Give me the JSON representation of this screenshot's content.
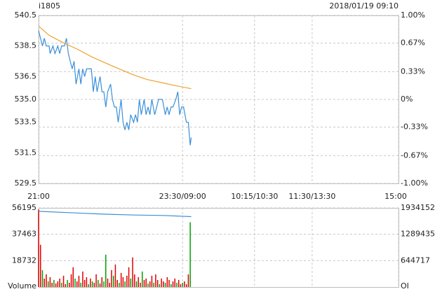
{
  "chart_data": [
    {
      "type": "line",
      "title": "i1805",
      "subtitle": "2018/01/19 09:10",
      "xlim": [
        0,
        375
      ],
      "xticks": [
        {
          "value": 0,
          "label": "21:00"
        },
        {
          "value": 150,
          "label": "23:30/09:00"
        },
        {
          "value": 225,
          "label": "10:15/10:30"
        },
        {
          "value": 285,
          "label": "11:30/13:30"
        },
        {
          "value": 375,
          "label": "15:00"
        }
      ],
      "ylim": [
        529.5,
        540.5
      ],
      "yticks": [
        540.5,
        538.5,
        536.5,
        {
          "value": 535,
          "label": "535.0"
        },
        533.5,
        531.5,
        529.5
      ],
      "y2lim": [
        -1,
        1
      ],
      "y2ticks": [
        {
          "value": 1,
          "label": "1.00%"
        },
        {
          "value": 0.67,
          "label": "0.67%"
        },
        {
          "value": 0.33,
          "label": "0.33%"
        },
        {
          "value": 0,
          "label": "0%"
        },
        {
          "value": -0.33,
          "label": "-0.33%"
        },
        {
          "value": -0.67,
          "label": "-0.67%"
        },
        {
          "value": -1,
          "label": "-1.00%"
        }
      ],
      "grid": true,
      "series": [
        {
          "color": "#3a8fd9",
          "x": [
            0,
            4,
            6,
            8,
            11,
            12,
            15,
            17,
            20,
            22,
            24,
            27,
            29,
            31,
            33,
            35,
            37,
            39,
            42,
            44,
            46,
            48,
            50,
            53,
            55,
            57,
            59,
            61,
            64,
            66,
            68,
            70,
            72,
            75,
            77,
            79,
            81,
            83,
            86,
            88,
            90,
            92,
            94,
            96,
            99,
            101,
            103,
            105,
            107,
            110,
            112,
            114,
            116,
            118,
            121,
            123,
            125,
            127,
            129,
            132,
            134,
            136,
            138,
            140,
            143,
            145,
            147,
            149,
            151,
            154,
            156,
            158,
            159
          ],
          "values": [
            539.5,
            538.5,
            539.0,
            538.5,
            538.5,
            538.0,
            538.5,
            538.0,
            538.5,
            538.0,
            538.5,
            538.5,
            539.0,
            538.0,
            537.5,
            537.0,
            537.5,
            536.0,
            537.0,
            536.0,
            537.0,
            536.5,
            537.0,
            537.0,
            537.0,
            535.5,
            536.5,
            535.5,
            536.5,
            535.5,
            535.5,
            534.5,
            535.5,
            536.0,
            535.0,
            534.5,
            534.5,
            533.5,
            535.0,
            533.5,
            533.0,
            533.5,
            533.0,
            534.0,
            533.5,
            534.0,
            533.5,
            535.0,
            534.0,
            535.0,
            534.0,
            534.5,
            534.0,
            535.0,
            534.0,
            534.5,
            535.0,
            535.0,
            535.0,
            534.0,
            534.5,
            534.0,
            534.5,
            534.5,
            535.0,
            535.5,
            534.0,
            534.5,
            534.5,
            533.5,
            533.5,
            532.0,
            532.5
          ]
        },
        {
          "color": "#f0a030",
          "x": [
            0,
            11,
            26,
            40,
            55,
            69,
            84,
            99,
            113,
            128,
            143,
            159
          ],
          "values": [
            539.8,
            539.2,
            538.7,
            538.3,
            537.8,
            537.4,
            537.0,
            536.6,
            536.3,
            536.1,
            535.9,
            535.7
          ]
        }
      ]
    },
    {
      "type": "bar",
      "ylabel": "Volume",
      "y2label": "OI",
      "xlim": [
        0,
        375
      ],
      "ylim": [
        0,
        56195
      ],
      "yticks": [
        18732,
        37463,
        56195
      ],
      "y2lim": [
        0,
        1934152
      ],
      "y2ticks": [
        644717,
        1289435,
        1934152
      ],
      "grid": true,
      "series": [
        {
          "x": [
            0,
            2,
            4,
            6,
            8,
            10,
            12,
            14,
            16,
            18,
            20,
            22,
            24,
            26,
            28,
            30,
            32,
            34,
            36,
            38,
            40,
            42,
            44,
            46,
            48,
            50,
            52,
            54,
            56,
            58,
            60,
            62,
            64,
            66,
            68,
            70,
            72,
            74,
            76,
            78,
            80,
            82,
            84,
            86,
            88,
            90,
            92,
            94,
            96,
            98,
            100,
            102,
            104,
            106,
            108,
            110,
            112,
            114,
            116,
            118,
            120,
            122,
            124,
            126,
            128,
            130,
            132,
            134,
            136,
            138,
            140,
            142,
            144,
            146,
            148,
            150,
            152,
            154,
            156,
            158
          ],
          "values": [
            55000,
            30000,
            12000,
            6000,
            9000,
            4000,
            7000,
            3000,
            5000,
            2500,
            4000,
            6000,
            3000,
            8000,
            2000,
            5000,
            3000,
            9000,
            14000,
            6000,
            4000,
            8000,
            3000,
            11000,
            5000,
            7000,
            2000,
            6000,
            4000,
            3000,
            9000,
            5000,
            2500,
            7000,
            4000,
            23000,
            6000,
            3000,
            12000,
            8000,
            16000,
            5000,
            3000,
            10000,
            7000,
            4000,
            8000,
            14000,
            6000,
            21000,
            9000,
            4000,
            7000,
            3000,
            11000,
            5000,
            6000,
            2500,
            4000,
            8000,
            3000,
            9000,
            5000,
            2000,
            6000,
            4000,
            3000,
            7000,
            5000,
            2000,
            4000,
            6000,
            3000,
            5000,
            2000,
            3000,
            4000,
            2000,
            9000,
            46000
          ],
          "colors": [
            "#e00000",
            "#e00000",
            "#00a000",
            "#e00000",
            "#e00000",
            "#00a000",
            "#e00000",
            "#e00000",
            "#00a000",
            "#e00000",
            "#e00000",
            "#e00000",
            "#00a000",
            "#e00000",
            "#e00000",
            "#00a000",
            "#e00000",
            "#e00000",
            "#e00000",
            "#00a000",
            "#e00000",
            "#e00000",
            "#00a000",
            "#e00000",
            "#e00000",
            "#e00000",
            "#00a000",
            "#e00000",
            "#00a000",
            "#e00000",
            "#e00000",
            "#00a000",
            "#e00000",
            "#e00000",
            "#00a000",
            "#00a000",
            "#e00000",
            "#e00000",
            "#e00000",
            "#00a000",
            "#e00000",
            "#e00000",
            "#00a000",
            "#e00000",
            "#e00000",
            "#00a000",
            "#e00000",
            "#e00000",
            "#00a000",
            "#e00000",
            "#e00000",
            "#00a000",
            "#e00000",
            "#e00000",
            "#00a000",
            "#e00000",
            "#e00000",
            "#00a000",
            "#e00000",
            "#e00000",
            "#00a000",
            "#e00000",
            "#e00000",
            "#00a000",
            "#e00000",
            "#e00000",
            "#00a000",
            "#e00000",
            "#e00000",
            "#00a000",
            "#e00000",
            "#e00000",
            "#00a000",
            "#e00000",
            "#e00000",
            "#00a000",
            "#e00000",
            "#e00000",
            "#e00000",
            "#00a000"
          ]
        },
        {
          "axis": "y2",
          "color": "#3a8fd9",
          "x": [
            0,
            30,
            70,
            100,
            130,
            159
          ],
          "values": [
            1850000,
            1820000,
            1780000,
            1760000,
            1750000,
            1720000
          ]
        }
      ]
    }
  ]
}
